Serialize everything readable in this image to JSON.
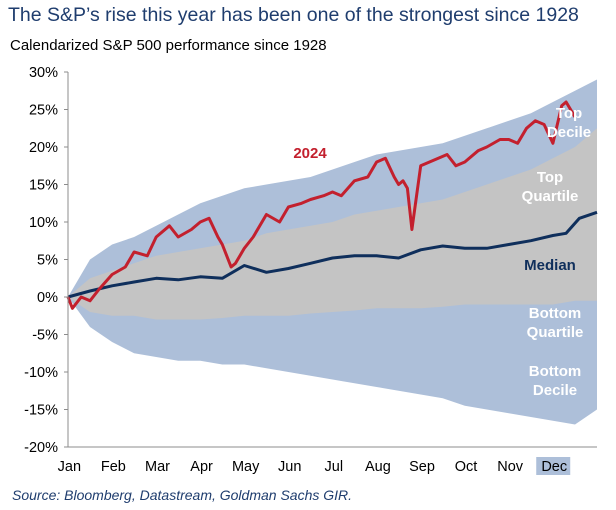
{
  "title": "The S&P’s rise this year has been one of the strongest since 1928",
  "subtitle": "Calendarized S&P 500 performance since 1928",
  "source": "Source: Bloomberg, Datastream, Goldman Sachs GIR.",
  "colors": {
    "decile_band": "#adbfd9",
    "quartile_band": "#c4c4c4",
    "median_line": "#0f2f5c",
    "line_2024": "#c3202e",
    "band_label": "#ffffff",
    "median_label": "#0f2f5c",
    "label_2024": "#c3202e",
    "title": "#1f3d6e",
    "dec_highlight": "#adbfd9"
  },
  "chart_data": {
    "type": "area",
    "x": [
      "Jan",
      "Feb",
      "Mar",
      "Apr",
      "May",
      "Jun",
      "Jul",
      "Aug",
      "Sep",
      "Oct",
      "Nov",
      "Dec"
    ],
    "ylim": [
      -20,
      30
    ],
    "yticks": [
      -20,
      -15,
      -10,
      -5,
      0,
      5,
      10,
      15,
      20,
      25,
      30
    ],
    "ytick_labels": [
      "-20%",
      "-15%",
      "-10%",
      "-5%",
      "0%",
      "5%",
      "10%",
      "15%",
      "20%",
      "25%",
      "30%"
    ],
    "grid": false,
    "series": [
      {
        "name": "Top Decile",
        "label": [
          "Top",
          "Decile"
        ],
        "x": [
          0,
          0.5,
          1,
          1.5,
          2,
          2.5,
          3,
          3.5,
          4,
          4.5,
          5,
          5.5,
          6,
          6.5,
          7,
          7.5,
          8,
          8.5,
          9,
          9.5,
          10,
          10.5,
          11,
          11.5,
          12
        ],
        "values": [
          0,
          5,
          7,
          8,
          9.5,
          11,
          12.5,
          13.5,
          14.5,
          15,
          15.5,
          16,
          17,
          18,
          19,
          19.5,
          20,
          20.5,
          21.5,
          22.5,
          23.5,
          24.5,
          26,
          27.5,
          29
        ]
      },
      {
        "name": "Top Quartile",
        "label": [
          "Top",
          "Quartile"
        ],
        "x": [
          0,
          0.5,
          1,
          1.5,
          2,
          2.5,
          3,
          3.5,
          4,
          4.5,
          5,
          5.5,
          6,
          6.5,
          7,
          7.5,
          8,
          8.5,
          9,
          9.5,
          10,
          10.5,
          11,
          11.5,
          12
        ],
        "values": [
          0,
          2.5,
          3.5,
          4.5,
          5.5,
          6,
          6.5,
          7,
          7.5,
          8.5,
          9,
          9.5,
          10,
          11,
          11.5,
          12,
          12.5,
          13,
          14,
          15,
          16,
          17,
          18.5,
          20,
          22.5
        ]
      },
      {
        "name": "Median",
        "label": [
          "Median"
        ],
        "x": [
          0,
          0.5,
          1,
          1.5,
          2,
          2.5,
          3,
          3.5,
          4,
          4.5,
          5,
          5.5,
          6,
          6.5,
          7,
          7.5,
          8,
          8.5,
          9,
          9.5,
          10,
          10.5,
          11,
          11.3,
          11.6,
          12
        ],
        "values": [
          0,
          0.8,
          1.5,
          2,
          2.5,
          2.3,
          2.7,
          2.5,
          4.2,
          3.3,
          3.8,
          4.5,
          5.2,
          5.5,
          5.5,
          5.2,
          6.3,
          6.8,
          6.5,
          6.5,
          7,
          7.5,
          8.2,
          8.5,
          10.5,
          11.3
        ]
      },
      {
        "name": "Bottom Quartile",
        "label": [
          "Bottom",
          "Quartile"
        ],
        "x": [
          0,
          0.5,
          1,
          1.5,
          2,
          2.5,
          3,
          3.5,
          4,
          4.5,
          5,
          5.5,
          6,
          6.5,
          7,
          7.5,
          8,
          8.5,
          9,
          9.5,
          10,
          10.5,
          11,
          11.5,
          12
        ],
        "values": [
          0,
          -2,
          -2.5,
          -2.5,
          -3,
          -3,
          -3,
          -2.8,
          -2.5,
          -2.5,
          -2.5,
          -2.2,
          -2,
          -1.8,
          -1.5,
          -1.5,
          -1.5,
          -1.3,
          -1,
          -1,
          -1,
          -1,
          -1,
          -0.5,
          -0.5
        ]
      },
      {
        "name": "Bottom Decile",
        "label": [
          "Bottom",
          "Decile"
        ],
        "x": [
          0,
          0.5,
          1,
          1.5,
          2,
          2.5,
          3,
          3.5,
          4,
          4.5,
          5,
          5.5,
          6,
          6.5,
          7,
          7.5,
          8,
          8.5,
          9,
          9.5,
          10,
          10.5,
          11,
          11.5,
          12
        ],
        "values": [
          0,
          -4,
          -6,
          -7.5,
          -8,
          -8.5,
          -8.5,
          -9,
          -9,
          -9.5,
          -10,
          -10.5,
          -11,
          -11.5,
          -12,
          -12.5,
          -13,
          -13.5,
          -14.5,
          -15,
          -15.5,
          -16,
          -16.5,
          -17,
          -15
        ]
      },
      {
        "name": "2024",
        "label": [
          "2024"
        ],
        "x": [
          0,
          0.1,
          0.3,
          0.5,
          0.7,
          1,
          1.3,
          1.5,
          1.8,
          2,
          2.3,
          2.5,
          2.8,
          3,
          3.2,
          3.4,
          3.5,
          3.7,
          3.8,
          4,
          4.2,
          4.5,
          4.8,
          5,
          5.3,
          5.5,
          5.8,
          6,
          6.2,
          6.5,
          6.8,
          7,
          7.2,
          7.4,
          7.5,
          7.6,
          7.7,
          7.8,
          8,
          8.2,
          8.4,
          8.6,
          8.8,
          9,
          9.3,
          9.5,
          9.8,
          10,
          10.2,
          10.4,
          10.6,
          10.8,
          11,
          11.2,
          11.3,
          11.5
        ],
        "values": [
          0,
          -1.5,
          0,
          -0.5,
          1,
          3,
          4,
          6,
          5.5,
          8,
          9.5,
          8,
          9,
          10,
          10.5,
          8,
          7,
          4,
          4.5,
          6.5,
          8,
          11,
          10,
          12,
          12.5,
          13,
          13.5,
          14,
          13.5,
          15.5,
          16,
          18,
          18.5,
          16,
          15,
          15.5,
          14.5,
          9,
          17.5,
          18,
          18.5,
          19,
          17.5,
          18,
          19.5,
          20,
          21,
          21,
          20.5,
          22.5,
          23.5,
          23,
          20.5,
          25.5,
          26,
          24
        ]
      }
    ]
  }
}
